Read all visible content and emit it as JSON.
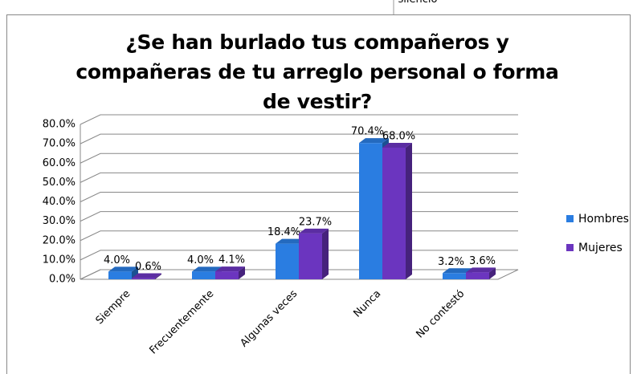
{
  "header_fragment": "silencio",
  "chart_data": {
    "type": "bar3d",
    "title": "¿Se han burlado tus compañeros y compañeras de tu arreglo personal o forma de vestir?",
    "categories": [
      "Siempre",
      "Frecuentemente",
      "Algunas veces",
      "Nunca",
      "No contestó"
    ],
    "series": [
      {
        "name": "Hombres",
        "color": "#2a7de1",
        "values": [
          4.0,
          4.0,
          18.4,
          70.4,
          3.2
        ],
        "value_labels": [
          "4.0%",
          "4.0%",
          "18.4%",
          "70.4%",
          "3.2%"
        ]
      },
      {
        "name": "Mujeres",
        "color": "#6b35bf",
        "values": [
          0.6,
          4.1,
          23.7,
          68.0,
          3.6
        ],
        "value_labels": [
          "0.6%",
          "4.1%",
          "23.7%",
          "68.0%",
          "3.6%"
        ]
      }
    ],
    "ylim": [
      0,
      80
    ],
    "yticks": [
      {
        "value": 0,
        "label": "0.0%"
      },
      {
        "value": 10,
        "label": "10.0%"
      },
      {
        "value": 20,
        "label": "20.0%"
      },
      {
        "value": 30,
        "label": "30.0%"
      },
      {
        "value": 40,
        "label": "40.0%"
      },
      {
        "value": 50,
        "label": "50.0%"
      },
      {
        "value": 60,
        "label": "60.0%"
      },
      {
        "value": 70,
        "label": "70.0%"
      },
      {
        "value": 80,
        "label": "80.0%"
      }
    ],
    "grid": true,
    "legend": "right"
  }
}
